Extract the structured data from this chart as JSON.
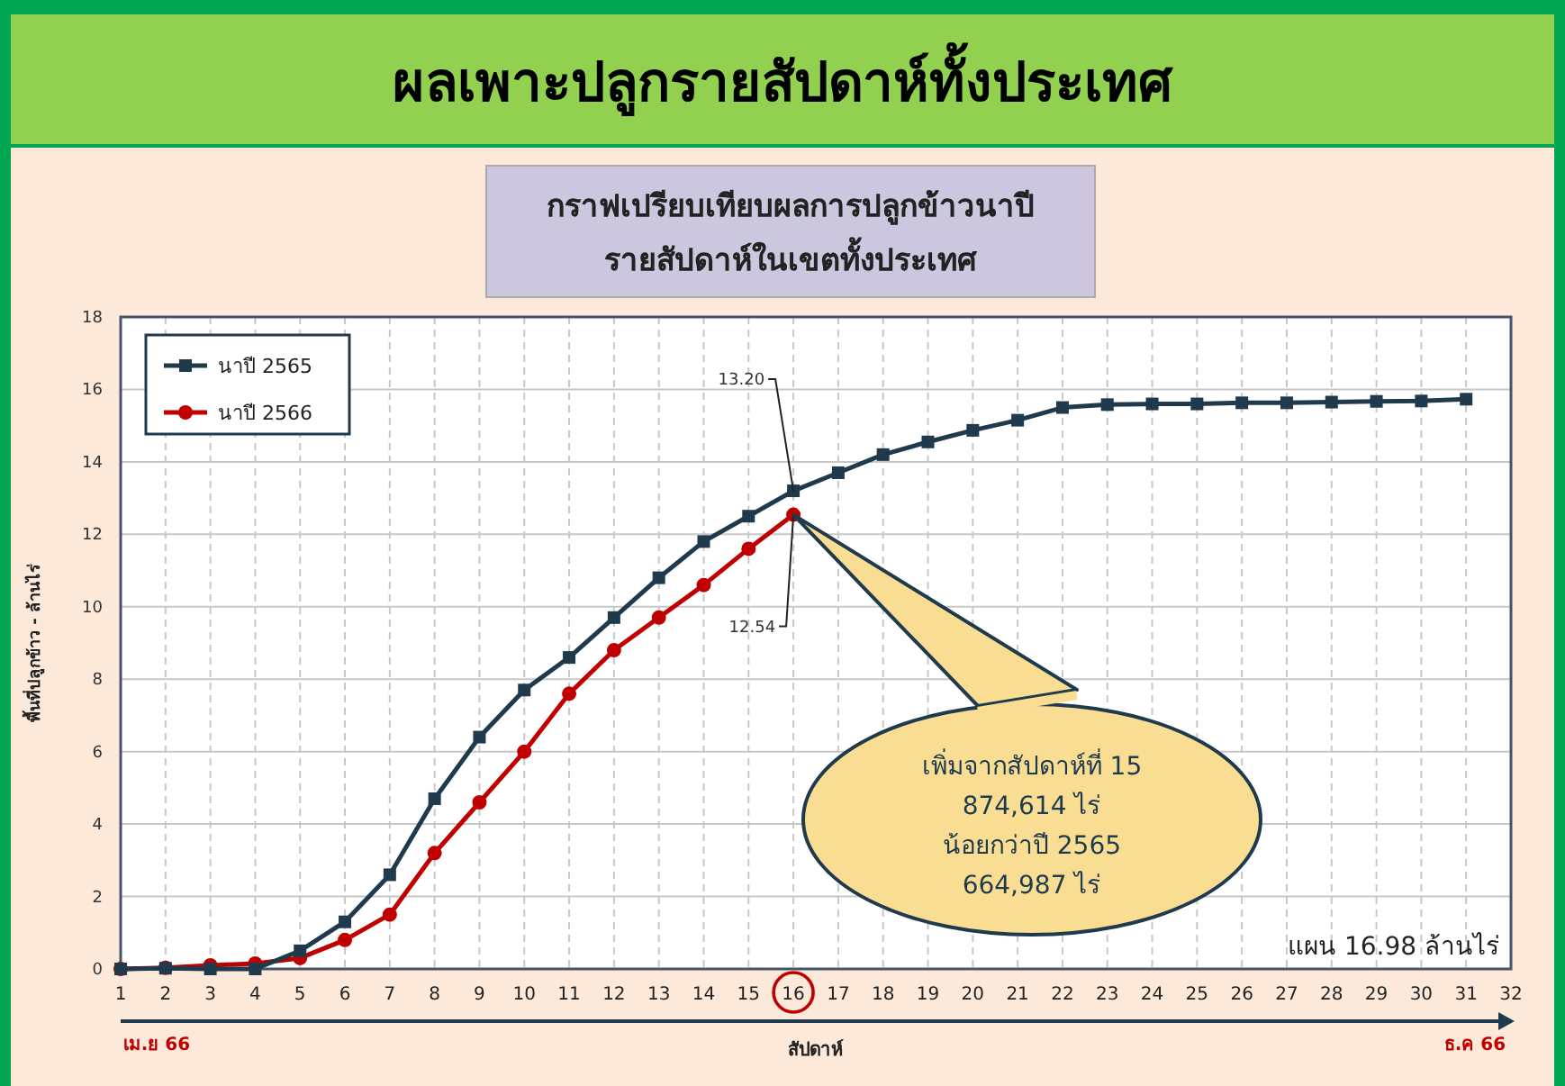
{
  "chart_data": {
    "type": "line",
    "title": "ผลเพาะปลูกรายสัปดาห์ทั้งประเทศ",
    "subtitle": "กราฟเปรียบเทียบผลการปลูกข้าวนาปี\nรายสัปดาห์ในเขตทั้งประเทศ",
    "xlabel": "สัปดาห์",
    "ylabel": "พื้นที่ปลูกข้าว - ล้านไร่",
    "x": [
      1,
      2,
      3,
      4,
      5,
      6,
      7,
      8,
      9,
      10,
      11,
      12,
      13,
      14,
      15,
      16,
      17,
      18,
      19,
      20,
      21,
      22,
      23,
      24,
      25,
      26,
      27,
      28,
      29,
      30,
      31
    ],
    "series": [
      {
        "name": "นาปี 2565",
        "color": "#1f3a4d",
        "marker": "square",
        "values": [
          0,
          0.02,
          0,
          0,
          0.5,
          1.3,
          2.6,
          4.7,
          6.4,
          7.7,
          8.6,
          9.7,
          10.8,
          11.8,
          12.5,
          13.2,
          13.7,
          14.2,
          14.55,
          14.87,
          15.15,
          15.5,
          15.58,
          15.6,
          15.6,
          15.63,
          15.63,
          15.65,
          15.67,
          15.68,
          15.73
        ]
      },
      {
        "name": "นาปี 2566",
        "color": "#c00000",
        "marker": "circle",
        "x": [
          1,
          2,
          3,
          4,
          5,
          6,
          7,
          8,
          9,
          10,
          11,
          12,
          13,
          14,
          15,
          16
        ],
        "values": [
          0,
          0.03,
          0.1,
          0.15,
          0.3,
          0.8,
          1.5,
          3.2,
          4.6,
          6.0,
          7.6,
          8.8,
          9.7,
          10.6,
          11.6,
          12.54
        ]
      }
    ],
    "xlim": [
      1,
      32
    ],
    "xticks": [
      1,
      2,
      3,
      4,
      5,
      6,
      7,
      8,
      9,
      10,
      11,
      12,
      13,
      14,
      15,
      16,
      17,
      18,
      19,
      20,
      21,
      22,
      23,
      24,
      25,
      26,
      27,
      28,
      29,
      30,
      31,
      32
    ],
    "ylim": [
      0,
      18
    ],
    "yticks": [
      0,
      2,
      4,
      6,
      8,
      10,
      12,
      14,
      16,
      18
    ],
    "grid": true,
    "legend": "top left",
    "line_style": "solid",
    "annotations": [
      {
        "text": "13.20",
        "x": 16,
        "y": 13.2
      },
      {
        "text": "12.54",
        "x": 16,
        "y": 12.54
      },
      "เพิ่มจากสัปดาห์ที่ 15\n874,614  ไร่\nน้อยกว่าปี 2565\n664,987  ไร่",
      "แผน  16.98  ล้านไร่",
      "เม.ย 66",
      "ธ.ค 66"
    ]
  }
}
